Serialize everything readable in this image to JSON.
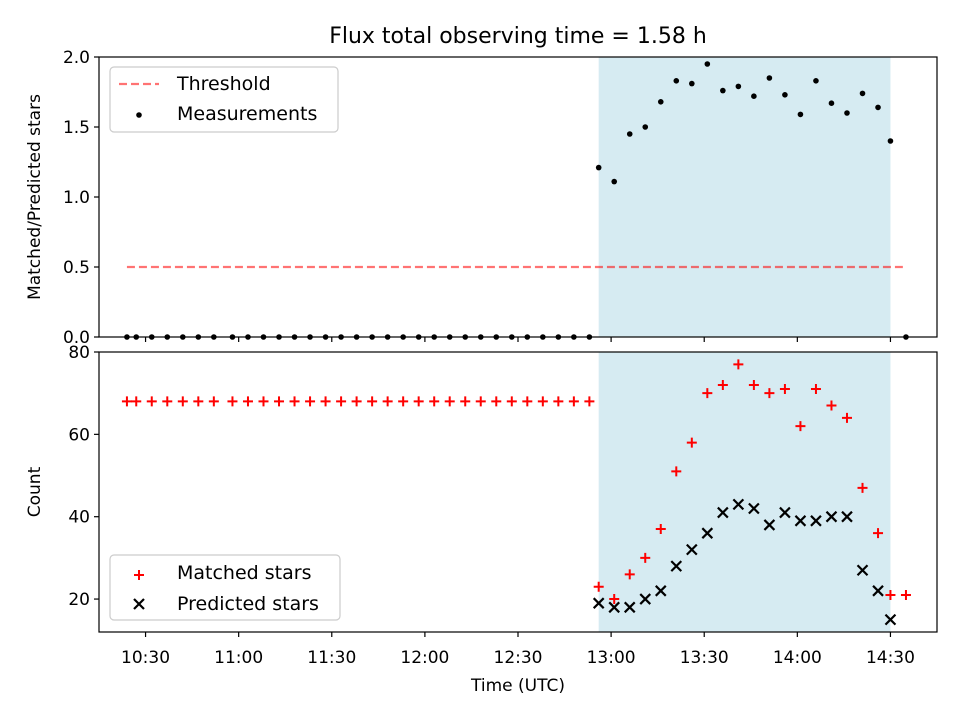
{
  "title": "Flux total observing time = 1.58 h",
  "colors": {
    "shade": "#add8e6",
    "threshold": "#ff0000",
    "measurements": "#000000",
    "matched": "#ff0000",
    "predicted": "#000000"
  },
  "chart_data": [
    {
      "type": "scatter",
      "ylabel": "Matched/Predicted stars",
      "ylim": [
        0,
        2.0
      ],
      "xlim": [
        "10:15",
        "14:45"
      ],
      "y_ticks": [
        "0.0",
        "0.5",
        "1.0",
        "1.5",
        "2.0"
      ],
      "legend_placement": "top-left",
      "shaded_span": [
        "12:56",
        "14:30"
      ],
      "threshold": {
        "name": "Threshold",
        "value": 0.5,
        "x_range": [
          "10:24",
          "14:34"
        ]
      },
      "series": [
        {
          "name": "Measurements",
          "x": [
            "10:24",
            "10:27",
            "10:32",
            "10:37",
            "10:42",
            "10:47",
            "10:52",
            "10:58",
            "11:03",
            "11:08",
            "11:13",
            "11:18",
            "11:23",
            "11:28",
            "11:33",
            "11:38",
            "11:43",
            "11:48",
            "11:53",
            "11:58",
            "12:03",
            "12:08",
            "12:13",
            "12:18",
            "12:23",
            "12:28",
            "12:33",
            "12:38",
            "12:43",
            "12:48",
            "12:53",
            "12:56",
            "13:01",
            "13:06",
            "13:11",
            "13:16",
            "13:21",
            "13:26",
            "13:31",
            "13:36",
            "13:41",
            "13:46",
            "13:51",
            "13:56",
            "14:01",
            "14:06",
            "14:11",
            "14:16",
            "14:21",
            "14:26",
            "14:30",
            "14:35"
          ],
          "y": [
            0,
            0,
            0,
            0,
            0,
            0,
            0,
            0,
            0,
            0,
            0,
            0,
            0,
            0,
            0,
            0,
            0,
            0,
            0,
            0,
            0,
            0,
            0,
            0,
            0,
            0,
            0,
            0,
            0,
            0,
            0,
            1.21,
            1.11,
            1.45,
            1.5,
            1.68,
            1.83,
            1.81,
            1.95,
            1.76,
            1.79,
            1.72,
            1.85,
            1.73,
            1.59,
            1.83,
            1.67,
            1.6,
            1.74,
            1.64,
            1.4,
            0
          ]
        }
      ]
    },
    {
      "type": "scatter",
      "xlabel": "Time (UTC)",
      "ylabel": "Count",
      "ylim": [
        12,
        80
      ],
      "xlim": [
        "10:15",
        "14:45"
      ],
      "y_ticks": [
        "20",
        "40",
        "60",
        "80"
      ],
      "x_ticks": [
        "10:30",
        "11:00",
        "11:30",
        "12:00",
        "12:30",
        "13:00",
        "13:30",
        "14:00",
        "14:30"
      ],
      "legend_placement": "bottom-left",
      "shaded_span": [
        "12:56",
        "14:30"
      ],
      "series": [
        {
          "name": "Matched stars",
          "x": [
            "10:24",
            "10:27",
            "10:32",
            "10:37",
            "10:42",
            "10:47",
            "10:52",
            "10:58",
            "11:03",
            "11:08",
            "11:13",
            "11:18",
            "11:23",
            "11:28",
            "11:33",
            "11:38",
            "11:43",
            "11:48",
            "11:53",
            "11:58",
            "12:03",
            "12:08",
            "12:13",
            "12:18",
            "12:23",
            "12:28",
            "12:33",
            "12:38",
            "12:43",
            "12:48",
            "12:53",
            "12:56",
            "13:01",
            "13:06",
            "13:11",
            "13:16",
            "13:21",
            "13:26",
            "13:31",
            "13:36",
            "13:41",
            "13:46",
            "13:51",
            "13:56",
            "14:01",
            "14:06",
            "14:11",
            "14:16",
            "14:21",
            "14:26",
            "14:30",
            "14:35"
          ],
          "y": [
            68,
            68,
            68,
            68,
            68,
            68,
            68,
            68,
            68,
            68,
            68,
            68,
            68,
            68,
            68,
            68,
            68,
            68,
            68,
            68,
            68,
            68,
            68,
            68,
            68,
            68,
            68,
            68,
            68,
            68,
            68,
            23,
            20,
            26,
            30,
            37,
            51,
            58,
            70,
            72,
            77,
            72,
            70,
            71,
            62,
            71,
            67,
            64,
            47,
            36,
            21,
            21
          ]
        },
        {
          "name": "Predicted stars",
          "x": [
            "12:56",
            "13:01",
            "13:06",
            "13:11",
            "13:16",
            "13:21",
            "13:26",
            "13:31",
            "13:36",
            "13:41",
            "13:46",
            "13:51",
            "13:56",
            "14:01",
            "14:06",
            "14:11",
            "14:16",
            "14:21",
            "14:26",
            "14:30"
          ],
          "y": [
            19,
            18,
            18,
            20,
            22,
            28,
            32,
            36,
            41,
            43,
            42,
            38,
            41,
            39,
            39,
            40,
            40,
            27,
            22,
            15
          ]
        }
      ]
    }
  ]
}
